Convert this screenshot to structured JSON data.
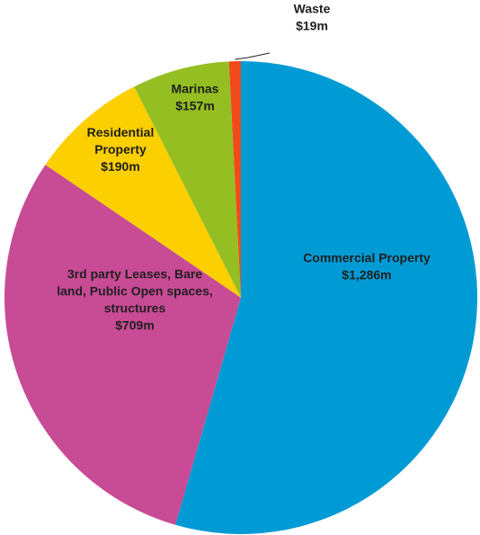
{
  "chart_data": {
    "type": "pie",
    "title": "",
    "legend": "none",
    "slices": [
      {
        "name": "Commercial Property",
        "label_lines": [
          "Commercial Property",
          "$1,286m"
        ],
        "value": 1286,
        "color": "#009bd5"
      },
      {
        "name": "3rd party Leases, Bare land, Public Open spaces, structures",
        "label_lines": [
          "3rd party Leases, Bare",
          "land, Public Open spaces,",
          "structures",
          "$709m"
        ],
        "value": 709,
        "color": "#c84b95"
      },
      {
        "name": "Residential Property",
        "label_lines": [
          "Residential",
          "Property",
          "$190m"
        ],
        "value": 190,
        "color": "#fccf00"
      },
      {
        "name": "Marinas",
        "label_lines": [
          "Marinas",
          "$157m"
        ],
        "value": 157,
        "color": "#94be22"
      },
      {
        "name": "Waste",
        "label_lines": [
          "Waste",
          "$19m"
        ],
        "value": 19,
        "color": "#f04a1d"
      }
    ]
  }
}
